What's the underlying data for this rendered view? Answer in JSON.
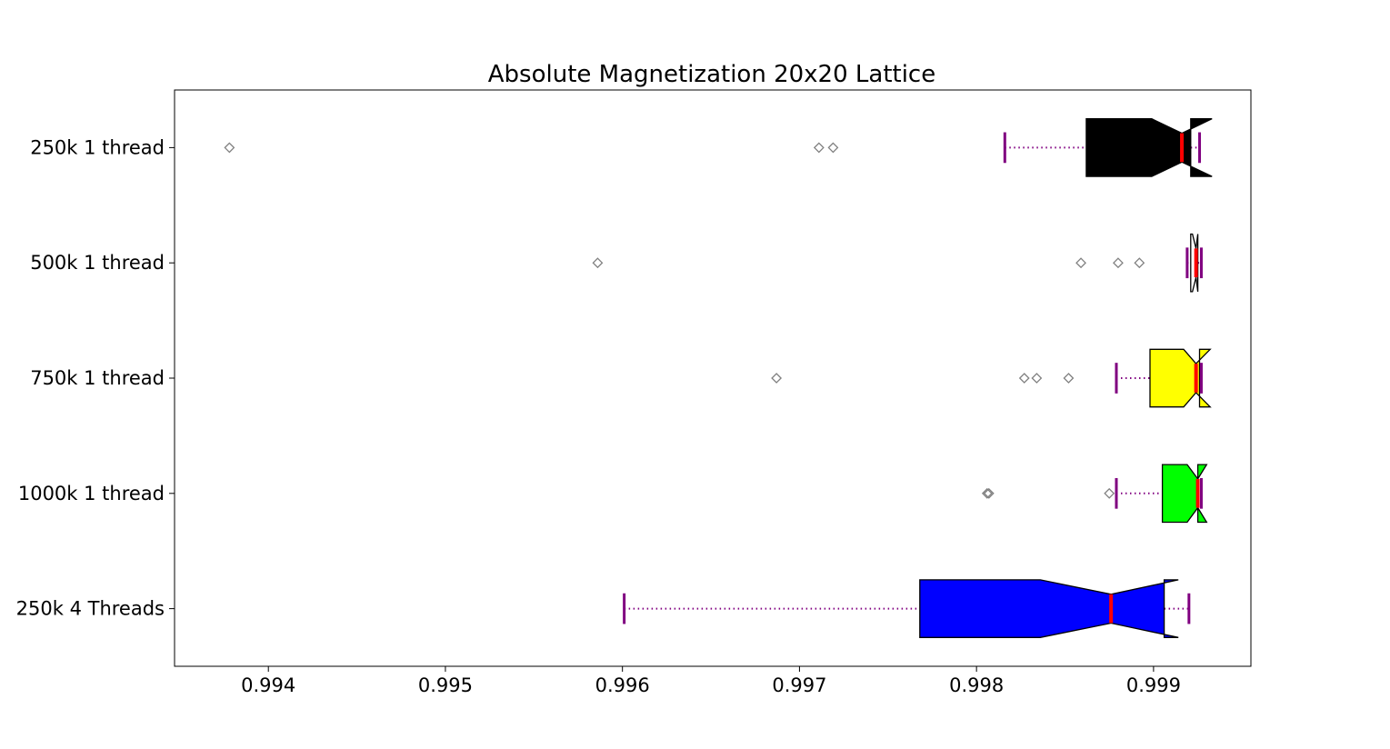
{
  "chart_data": {
    "type": "boxplot",
    "orientation": "horizontal",
    "notched": true,
    "title": "Absolute Magnetization 20x20 Lattice",
    "xlabel": "",
    "ylabel": "",
    "xlim": [
      0.99347,
      0.99955
    ],
    "xticks": [
      "0.994",
      "0.995",
      "0.996",
      "0.997",
      "0.998",
      "0.999"
    ],
    "grid": false,
    "whisker_color": "#800080",
    "median_color": "#ff0000",
    "flier_color": "#808080",
    "series": [
      {
        "name": "250k 1 thread",
        "color": "#000000",
        "whisker_low": 0.99816,
        "q1": 0.99862,
        "notch_low": 0.99899,
        "median": 0.99916,
        "notch_high": 0.99933,
        "q3": 0.99921,
        "whisker_high": 0.99926,
        "outliers": [
          0.99378,
          0.99711,
          0.99719
        ]
      },
      {
        "name": "500k 1 thread",
        "color": "#ffffff",
        "whisker_low": 0.99919,
        "q1": 0.99921,
        "notch_low": 0.99922,
        "median": 0.99924,
        "notch_high": 0.99925,
        "q3": 0.99925,
        "whisker_high": 0.99927,
        "outliers": [
          0.99586,
          0.99859,
          0.9988,
          0.99892
        ]
      },
      {
        "name": "750k 1 thread",
        "color": "#ffff00",
        "whisker_low": 0.99879,
        "q1": 0.99898,
        "notch_low": 0.99917,
        "median": 0.99924,
        "notch_high": 0.99932,
        "q3": 0.99926,
        "whisker_high": 0.99927,
        "outliers": [
          0.99687,
          0.99827,
          0.99834,
          0.99852
        ]
      },
      {
        "name": "1000k 1 thread",
        "color": "#00ff00",
        "whisker_low": 0.99879,
        "q1": 0.99905,
        "notch_low": 0.99919,
        "median": 0.99925,
        "notch_high": 0.9993,
        "q3": 0.99925,
        "whisker_high": 0.99927,
        "outliers": [
          0.99806,
          0.99807,
          0.99875
        ]
      },
      {
        "name": "250k 4 Threads",
        "color": "#0000ff",
        "whisker_low": 0.99601,
        "q1": 0.99768,
        "notch_low": 0.99836,
        "median": 0.99876,
        "notch_high": 0.99914,
        "q3": 0.99906,
        "whisker_high": 0.9992,
        "outliers": []
      }
    ]
  }
}
